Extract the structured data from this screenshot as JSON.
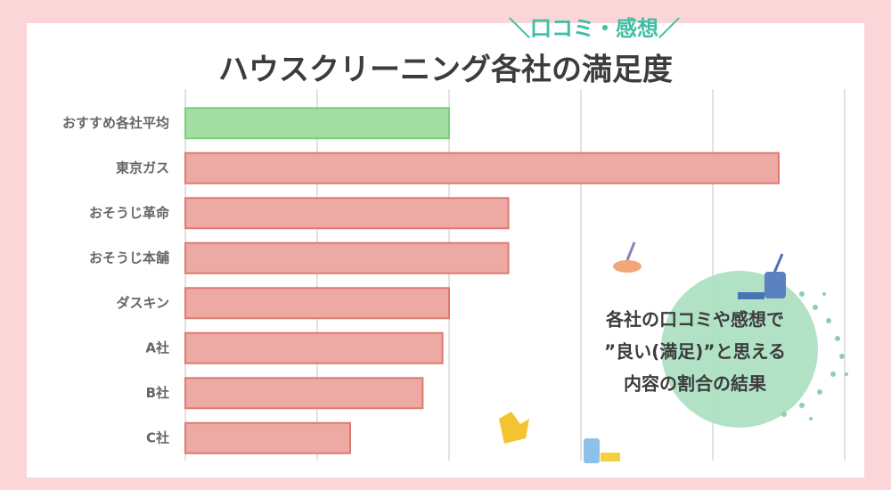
{
  "chart_data": {
    "type": "barh",
    "subtitle": "＼口コミ・感想／",
    "title": "ハウスクリーニング各社の満足度",
    "categories": [
      "おすすめ各社平均",
      "東京ガス",
      "おそうじ革命",
      "おそうじ本舗",
      "ダスキン",
      "A社",
      "B社",
      "C社"
    ],
    "values": [
      40,
      90,
      49,
      49,
      40,
      39,
      36,
      25
    ],
    "colors": [
      "#a3dea3",
      "#eda9a4",
      "#eda9a4",
      "#eda9a4",
      "#eda9a4",
      "#eda9a4",
      "#eda9a4",
      "#eda9a4"
    ],
    "xlim": [
      0,
      100
    ],
    "xticks": [
      0,
      20,
      40,
      60,
      80,
      100
    ],
    "grid": true,
    "annotation": [
      "各社の口コミや感想で",
      "”良い(満足)”と思える",
      "内容の割合の結果"
    ]
  }
}
